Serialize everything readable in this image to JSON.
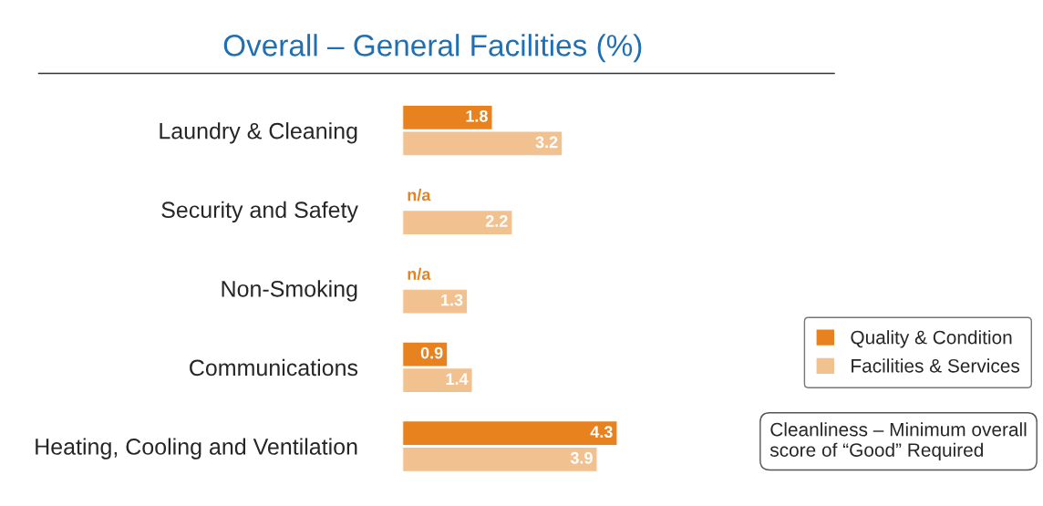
{
  "chart_data": {
    "type": "bar",
    "orientation": "horizontal",
    "title": "Overall – General Facilities (%)",
    "categories": [
      "Laundry & Cleaning",
      "Security and Safety",
      "Non-Smoking",
      "Communications",
      "Heating, Cooling and Ventilation"
    ],
    "series": [
      {
        "name": "Quality & Condition",
        "color": "#e8821e",
        "values": [
          1.8,
          null,
          null,
          0.9,
          4.3
        ],
        "value_labels": [
          "1.8",
          "n/a",
          "n/a",
          "0.9",
          "4.3"
        ]
      },
      {
        "name": "Facilities & Services",
        "color": "#f2c190",
        "values": [
          3.2,
          2.2,
          1.3,
          1.4,
          3.9
        ],
        "value_labels": [
          "3.2",
          "2.2",
          "1.3",
          "1.4",
          "3.9"
        ]
      }
    ],
    "legend": "bottom right",
    "annotations": [
      "Cleanliness – Minimum overall score of “Good” Required"
    ]
  }
}
